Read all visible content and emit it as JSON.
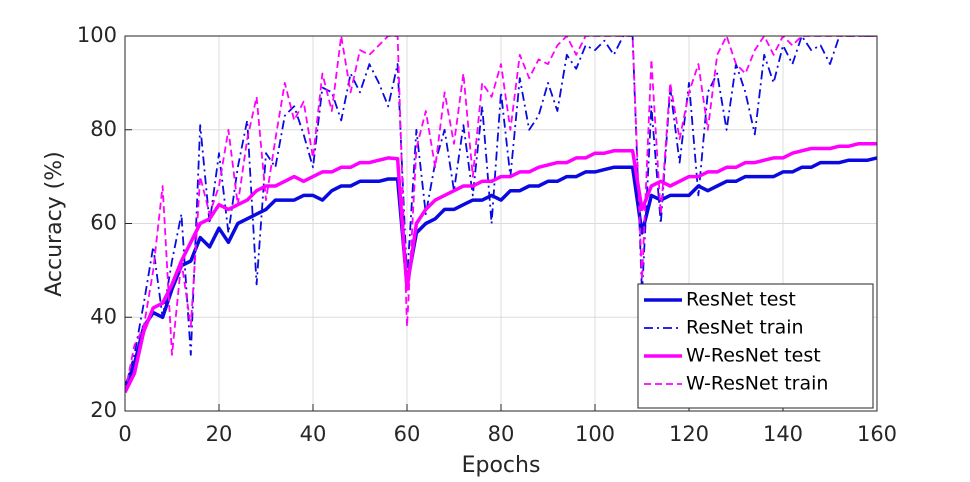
{
  "chart_data": {
    "type": "line",
    "xlabel": "Epochs",
    "ylabel": "Accuracy (%)",
    "xlim": [
      0,
      160
    ],
    "ylim": [
      20,
      100
    ],
    "xticks": [
      0,
      20,
      40,
      60,
      80,
      100,
      120,
      140,
      160
    ],
    "yticks": [
      20,
      40,
      60,
      80,
      100
    ],
    "grid": true,
    "legend": "lower right",
    "x": [
      0,
      2,
      4,
      6,
      8,
      10,
      12,
      14,
      16,
      18,
      20,
      22,
      24,
      26,
      28,
      30,
      32,
      34,
      36,
      38,
      40,
      42,
      44,
      46,
      48,
      50,
      52,
      54,
      56,
      58,
      60,
      62,
      64,
      66,
      68,
      70,
      72,
      74,
      76,
      78,
      80,
      82,
      84,
      86,
      88,
      90,
      92,
      94,
      96,
      98,
      100,
      102,
      104,
      106,
      108,
      110,
      112,
      114,
      116,
      118,
      120,
      122,
      124,
      126,
      128,
      130,
      132,
      134,
      136,
      138,
      140,
      142,
      144,
      146,
      148,
      150,
      152,
      154,
      156,
      158,
      160
    ],
    "series": [
      {
        "name": "ResNet test",
        "color": "#0a0ae0",
        "style": "solid",
        "width": 3.5,
        "values": [
          25,
          30,
          38,
          41,
          40,
          46,
          51,
          52,
          57,
          55,
          59,
          56,
          60,
          61,
          62,
          63,
          65,
          65,
          65,
          66,
          66,
          65,
          67,
          68,
          68,
          69,
          69,
          69,
          69.5,
          69.5,
          47,
          58,
          60,
          61,
          63,
          63,
          64,
          65,
          65,
          66,
          65,
          67,
          67,
          68,
          68,
          69,
          69,
          70,
          70,
          71,
          71,
          71.5,
          72,
          72,
          72,
          58,
          66,
          65,
          66,
          66,
          66,
          68,
          67,
          68,
          69,
          69,
          70,
          70,
          70,
          70,
          71,
          71,
          72,
          72,
          73,
          73,
          73,
          73.5,
          73.5,
          73.5,
          74
        ]
      },
      {
        "name": "ResNet train",
        "color": "#0a0ae0",
        "style": "dashdot",
        "width": 1.8,
        "values": [
          25,
          32,
          43,
          55,
          40,
          52,
          62,
          32,
          81,
          60,
          75,
          58,
          72,
          82,
          47,
          75,
          72,
          83,
          85,
          79,
          72,
          89,
          88,
          82,
          92,
          88,
          94,
          90,
          85,
          94,
          48,
          80,
          62,
          73,
          80,
          67,
          81,
          66,
          85,
          60,
          88,
          70,
          91,
          80,
          83,
          90,
          84,
          96,
          93,
          98,
          97,
          99,
          96,
          100,
          100,
          45,
          85,
          60,
          89,
          73,
          90,
          66,
          88,
          92,
          80,
          94,
          88,
          79,
          96,
          90,
          98,
          94,
          100,
          97,
          98,
          94,
          100,
          100,
          100,
          100,
          100
        ]
      },
      {
        "name": "W-ResNet test",
        "color": "#ff00ff",
        "style": "solid",
        "width": 3.5,
        "values": [
          24,
          28,
          37,
          42,
          43,
          47,
          52,
          56,
          60,
          61,
          64,
          63,
          64,
          65,
          67,
          68,
          68,
          69,
          70,
          69,
          70,
          71,
          71,
          72,
          72,
          73,
          73,
          73.5,
          74,
          73.8,
          46,
          60,
          63,
          65,
          66,
          67,
          68,
          68,
          69,
          69,
          70,
          70,
          71,
          71,
          72,
          72.5,
          73,
          73,
          74,
          74,
          75,
          75,
          75.5,
          75.5,
          75.5,
          63,
          68,
          69,
          68,
          69,
          70,
          70,
          71,
          71,
          72,
          72,
          73,
          73,
          73.5,
          74,
          74,
          75,
          75.5,
          76,
          76,
          76,
          76.5,
          76.5,
          77,
          77,
          77
        ]
      },
      {
        "name": "W-ResNet train",
        "color": "#ff00ff",
        "style": "dashed",
        "width": 1.8,
        "values": [
          24,
          34,
          38,
          50,
          68,
          32,
          52,
          38,
          70,
          62,
          68,
          80,
          64,
          78,
          87,
          65,
          78,
          90,
          82,
          86,
          74,
          92,
          84,
          100,
          88,
          97,
          96,
          98,
          100,
          100,
          38,
          76,
          84,
          72,
          88,
          77,
          92,
          70,
          90,
          87,
          94,
          80,
          96,
          91,
          95,
          94,
          98,
          100,
          96,
          100,
          100,
          100,
          100,
          100,
          100,
          48,
          95,
          62,
          90,
          78,
          88,
          94,
          80,
          96,
          100,
          94,
          92,
          97,
          100,
          96,
          100,
          98,
          100,
          100,
          100,
          100,
          100,
          100,
          100,
          100,
          100
        ]
      }
    ]
  }
}
